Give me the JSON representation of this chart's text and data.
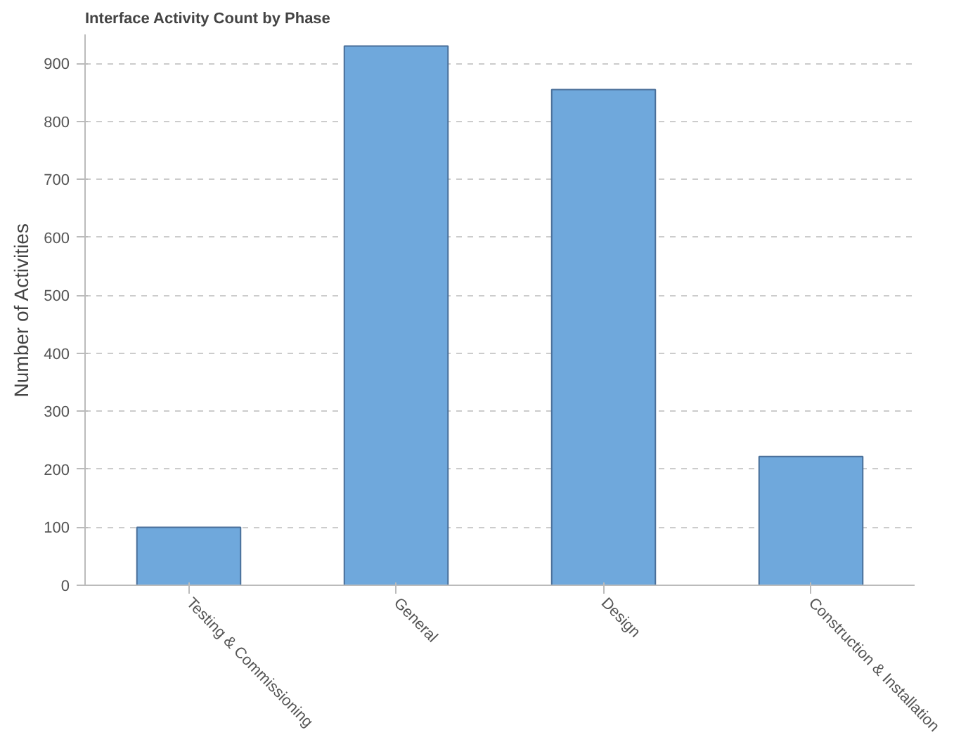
{
  "chart_data": {
    "type": "bar",
    "title": "Interface Activity Count by Phase",
    "ylabel": "Number of Activities",
    "categories": [
      "Testing & Commissioning",
      "General",
      "Design",
      "Construction & Installation"
    ],
    "values": [
      100,
      930,
      855,
      222
    ],
    "color": "#6fa8dc",
    "ylim": [
      0,
      950
    ],
    "yticks": [
      0,
      100,
      200,
      300,
      400,
      500,
      600,
      700,
      800,
      900
    ],
    "grid": "y"
  }
}
